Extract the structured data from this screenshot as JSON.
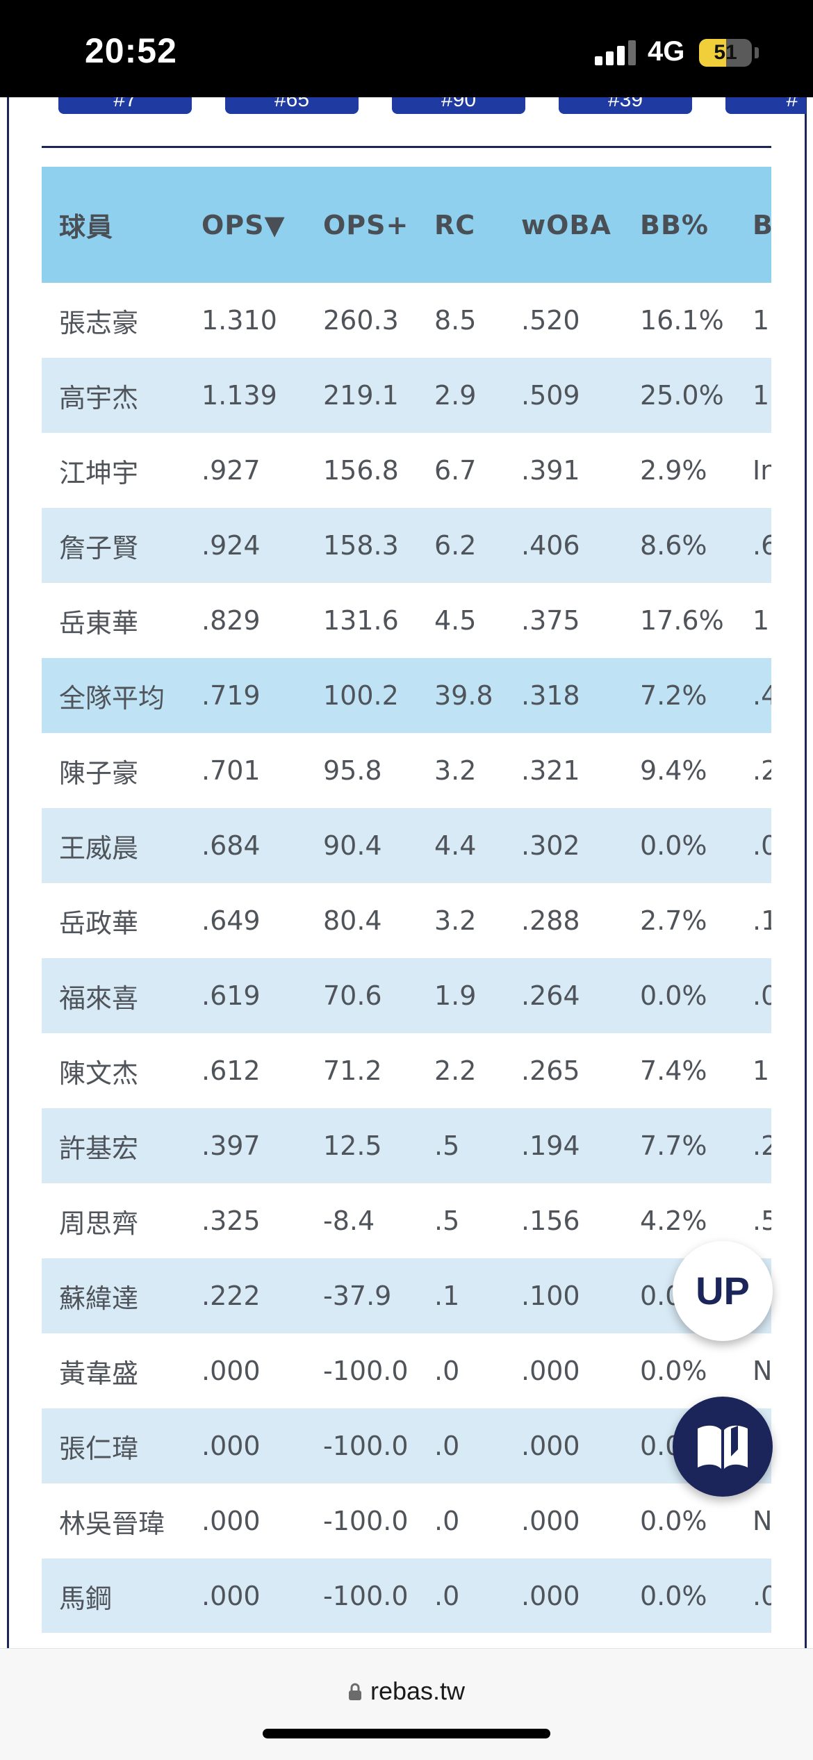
{
  "status_bar": {
    "time": "20:52",
    "network": "4G",
    "battery": "51",
    "battery_level_percent": 51,
    "signal_bars": 3
  },
  "top_tabs": [
    "#7",
    "#65",
    "#90",
    "#39",
    "#"
  ],
  "table": {
    "headers": [
      "球員",
      "OPS▼",
      "OPS+",
      "RC",
      "wOBA",
      "BB%",
      "B"
    ],
    "rows": [
      {
        "name": "張志豪",
        "ops": "1.310",
        "ops_plus": "260.3",
        "rc": "8.5",
        "woba": ".520",
        "bb_pct": "16.1%",
        "next": "1."
      },
      {
        "name": "高宇杰",
        "ops": "1.139",
        "ops_plus": "219.1",
        "rc": "2.9",
        "woba": ".509",
        "bb_pct": "25.0%",
        "next": "1."
      },
      {
        "name": "江坤宇",
        "ops": ".927",
        "ops_plus": "156.8",
        "rc": "6.7",
        "woba": ".391",
        "bb_pct": "2.9%",
        "next": "In"
      },
      {
        "name": "詹子賢",
        "ops": ".924",
        "ops_plus": "158.3",
        "rc": "6.2",
        "woba": ".406",
        "bb_pct": "8.6%",
        "next": ".6"
      },
      {
        "name": "岳東華",
        "ops": ".829",
        "ops_plus": "131.6",
        "rc": "4.5",
        "woba": ".375",
        "bb_pct": "17.6%",
        "next": "1."
      },
      {
        "name": "全隊平均",
        "ops": ".719",
        "ops_plus": "100.2",
        "rc": "39.8",
        "woba": ".318",
        "bb_pct": "7.2%",
        "next": ".4",
        "is_average": true
      },
      {
        "name": "陳子豪",
        "ops": ".701",
        "ops_plus": "95.8",
        "rc": "3.2",
        "woba": ".321",
        "bb_pct": "9.4%",
        "next": ".2"
      },
      {
        "name": "王威晨",
        "ops": ".684",
        "ops_plus": "90.4",
        "rc": "4.4",
        "woba": ".302",
        "bb_pct": "0.0%",
        "next": ".0"
      },
      {
        "name": "岳政華",
        "ops": ".649",
        "ops_plus": "80.4",
        "rc": "3.2",
        "woba": ".288",
        "bb_pct": "2.7%",
        "next": ".1"
      },
      {
        "name": "福來喜",
        "ops": ".619",
        "ops_plus": "70.6",
        "rc": "1.9",
        "woba": ".264",
        "bb_pct": "0.0%",
        "next": ".0"
      },
      {
        "name": "陳文杰",
        "ops": ".612",
        "ops_plus": "71.2",
        "rc": "2.2",
        "woba": ".265",
        "bb_pct": "7.4%",
        "next": "1."
      },
      {
        "name": "許基宏",
        "ops": ".397",
        "ops_plus": "12.5",
        "rc": ".5",
        "woba": ".194",
        "bb_pct": "7.7%",
        "next": ".2"
      },
      {
        "name": "周思齊",
        "ops": ".325",
        "ops_plus": "-8.4",
        "rc": ".5",
        "woba": ".156",
        "bb_pct": "4.2%",
        "next": ".5"
      },
      {
        "name": "蘇緯達",
        "ops": ".222",
        "ops_plus": "-37.9",
        "rc": ".1",
        "woba": ".100",
        "bb_pct": "0.0%",
        "next": ""
      },
      {
        "name": "黃韋盛",
        "ops": ".000",
        "ops_plus": "-100.0",
        "rc": ".0",
        "woba": ".000",
        "bb_pct": "0.0%",
        "next": "N"
      },
      {
        "name": "張仁瑋",
        "ops": ".000",
        "ops_plus": "-100.0",
        "rc": ".0",
        "woba": ".000",
        "bb_pct": "0.0%",
        "next": ""
      },
      {
        "name": "林吳晉瑋",
        "ops": ".000",
        "ops_plus": "-100.0",
        "rc": ".0",
        "woba": ".000",
        "bb_pct": "0.0%",
        "next": "N"
      },
      {
        "name": "馬鋼",
        "ops": ".000",
        "ops_plus": "-100.0",
        "rc": ".0",
        "woba": ".000",
        "bb_pct": "0.0%",
        "next": ".0"
      }
    ]
  },
  "floating": {
    "up_label": "UP",
    "guide_icon": "book-icon"
  },
  "browser": {
    "url": "rebas.tw",
    "lock_icon": "lock-icon"
  }
}
